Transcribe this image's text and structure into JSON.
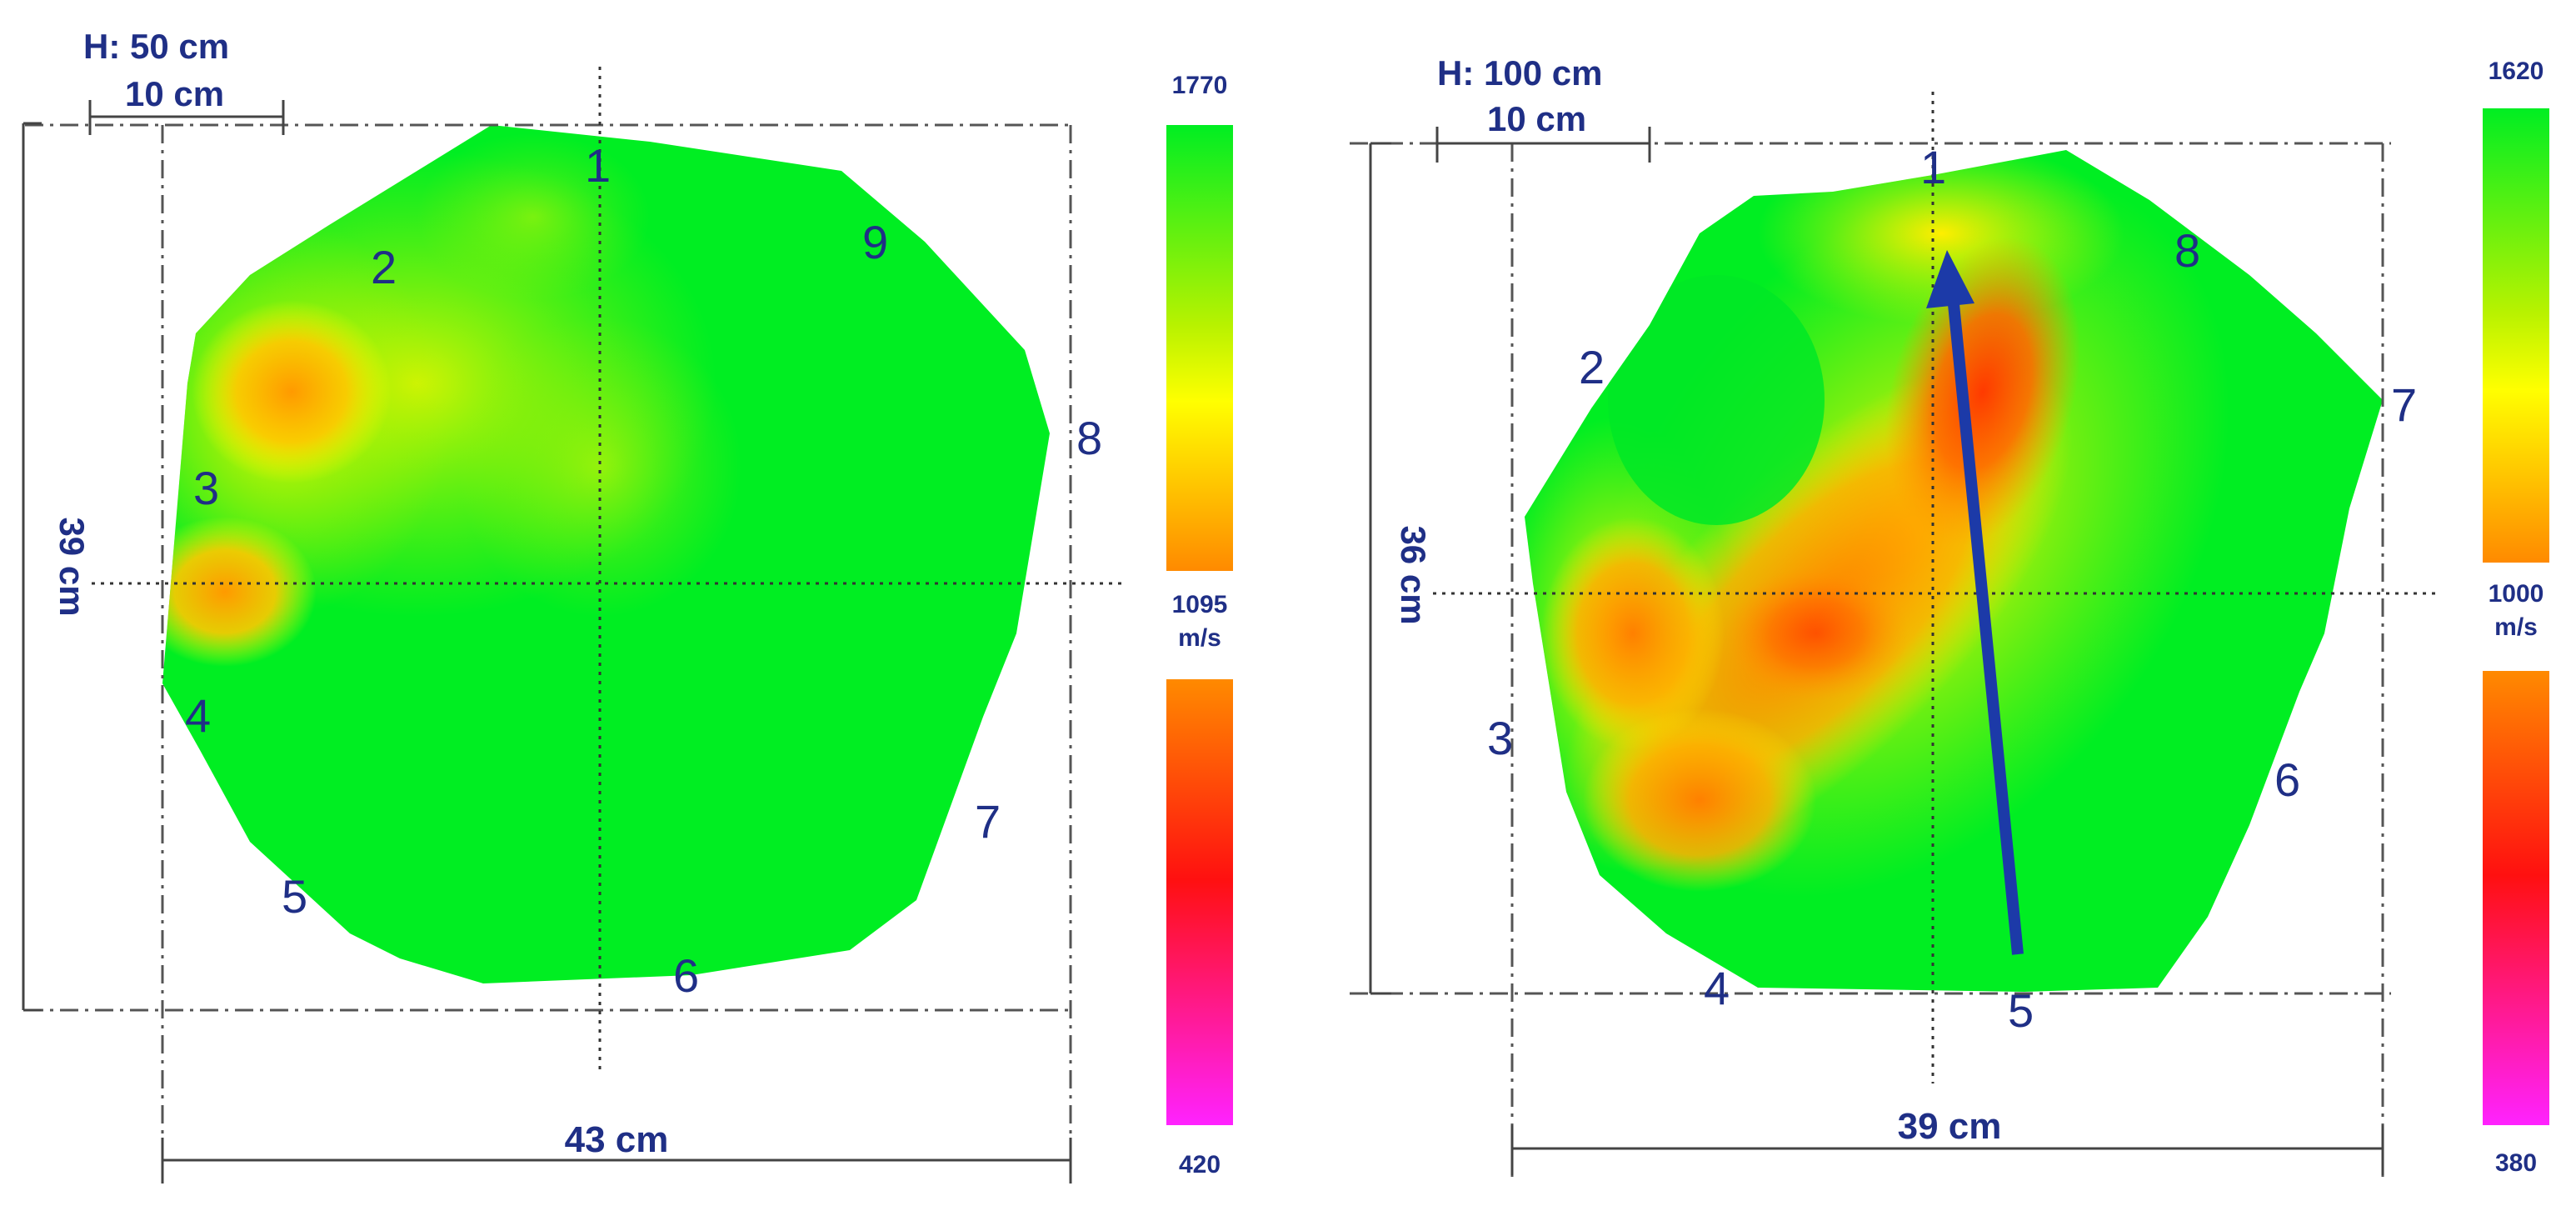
{
  "panels": [
    {
      "height_label": "H: 50 cm",
      "scale_bar_label": "10 cm",
      "vertical_dim_label": "39 cm",
      "horizontal_dim_label": "43 cm",
      "sensors": [
        "1",
        "2",
        "3",
        "4",
        "5",
        "6",
        "7",
        "8",
        "9"
      ],
      "colorbar": {
        "max": "1770",
        "mid": "1095",
        "unit": "m/s",
        "min": "420"
      }
    },
    {
      "height_label": "H: 100 cm",
      "scale_bar_label": "10 cm",
      "vertical_dim_label": "36 cm",
      "horizontal_dim_label": "39 cm",
      "sensors": [
        "1",
        "2",
        "3",
        "4",
        "5",
        "6",
        "7",
        "8"
      ],
      "colorbar": {
        "max": "1620",
        "mid": "1000",
        "unit": "m/s",
        "min": "380"
      }
    }
  ],
  "colors": {
    "green": "#00ee22",
    "yellow": "#ffff00",
    "orange": "#ff8800",
    "red": "#ff1111",
    "magenta": "#ff22ee",
    "text": "#1f2f86",
    "arrow": "#1c3aa8"
  }
}
